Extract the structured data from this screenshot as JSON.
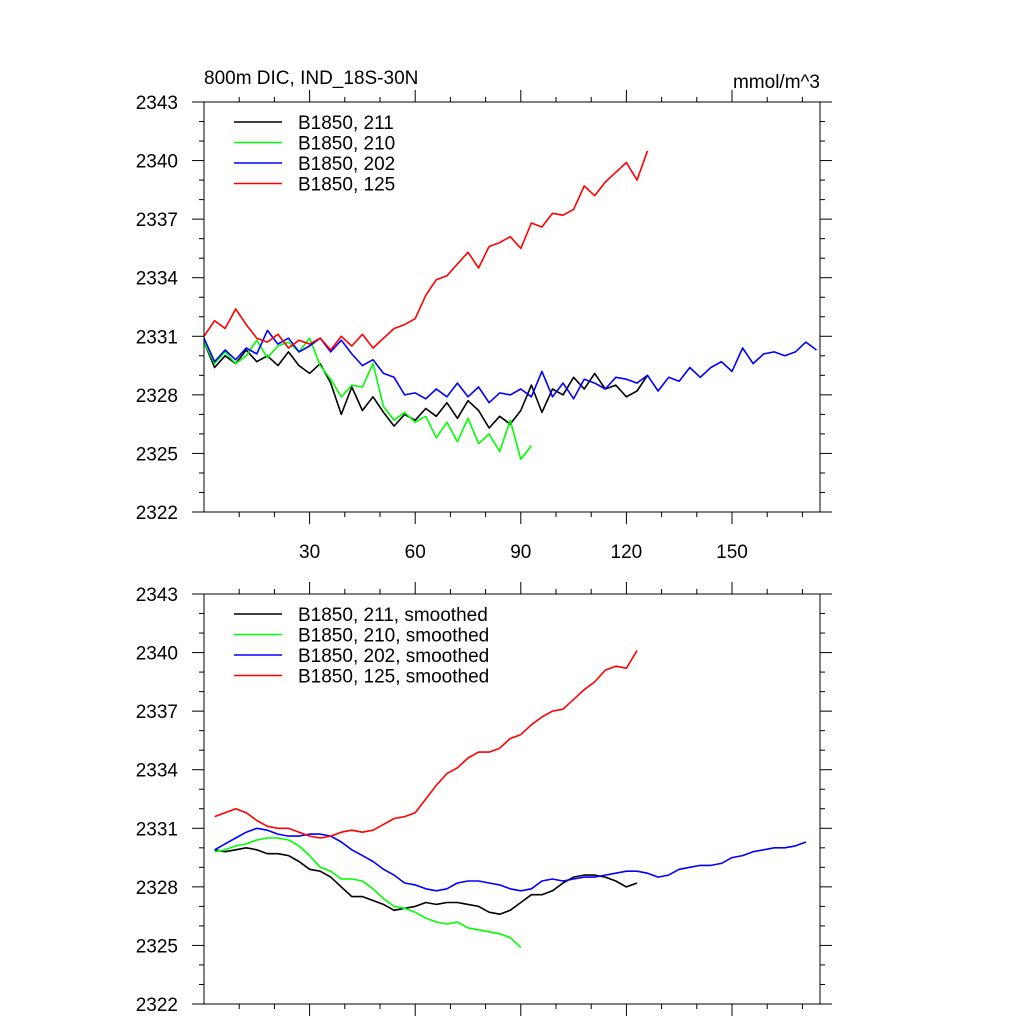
{
  "chart_data": [
    {
      "type": "line",
      "title": "800m DIC, IND_18S-30N",
      "units": "mmol/m^3",
      "xlim": [
        0,
        175
      ],
      "ylim": [
        2322,
        2343
      ],
      "xticks": [
        30,
        60,
        90,
        120,
        150
      ],
      "xtick_labels": [
        "30",
        "60",
        "90",
        "120",
        "150"
      ],
      "yticks": [
        2322,
        2325,
        2328,
        2331,
        2334,
        2337,
        2340,
        2343
      ],
      "ytick_labels": [
        "2322",
        "2325",
        "2328",
        "2331",
        "2334",
        "2337",
        "2340",
        "2343"
      ],
      "legend_position": "top-left",
      "series": [
        {
          "name": "B1850, 211",
          "color": "#000000",
          "x": [
            0,
            3,
            6,
            9,
            12,
            15,
            18,
            21,
            24,
            27,
            30,
            33,
            36,
            39,
            42,
            45,
            48,
            51,
            54,
            57,
            60,
            63,
            66,
            69,
            72,
            75,
            78,
            81,
            84,
            87,
            90,
            93,
            96,
            99,
            102,
            105,
            108,
            111,
            114,
            117,
            120,
            123,
            126
          ],
          "y": [
            2330.7,
            2329.4,
            2330.0,
            2329.6,
            2330.3,
            2329.7,
            2330.0,
            2329.5,
            2330.2,
            2329.5,
            2329.1,
            2329.6,
            2328.6,
            2327.0,
            2328.4,
            2327.2,
            2327.9,
            2327.1,
            2326.4,
            2327.0,
            2326.7,
            2327.3,
            2326.9,
            2327.6,
            2326.8,
            2327.7,
            2327.2,
            2326.3,
            2326.9,
            2326.5,
            2327.2,
            2328.5,
            2327.1,
            2328.3,
            2328.0,
            2328.9,
            2328.3,
            2329.1,
            2328.3,
            2328.5,
            2327.9,
            2328.2,
            2329.0
          ]
        },
        {
          "name": "B1850, 210",
          "color": "#00ff00",
          "x": [
            0,
            3,
            6,
            9,
            12,
            15,
            18,
            21,
            24,
            27,
            30,
            33,
            36,
            39,
            42,
            45,
            48,
            51,
            54,
            57,
            60,
            63,
            66,
            69,
            72,
            75,
            78,
            81,
            84,
            87,
            90,
            93
          ],
          "y": [
            2330.7,
            2329.6,
            2330.2,
            2329.6,
            2330.0,
            2330.8,
            2329.9,
            2330.5,
            2330.7,
            2330.2,
            2330.9,
            2329.5,
            2328.8,
            2327.9,
            2328.5,
            2328.4,
            2329.6,
            2327.4,
            2326.7,
            2327.1,
            2326.6,
            2326.9,
            2325.8,
            2326.6,
            2325.6,
            2326.8,
            2325.5,
            2326.0,
            2325.1,
            2326.7,
            2324.7,
            2325.4
          ]
        },
        {
          "name": "B1850, 202",
          "color": "#0000ff",
          "x": [
            0,
            3,
            6,
            9,
            12,
            15,
            18,
            21,
            24,
            27,
            30,
            33,
            36,
            39,
            42,
            45,
            48,
            51,
            54,
            57,
            60,
            63,
            66,
            69,
            72,
            75,
            78,
            81,
            84,
            87,
            90,
            93,
            96,
            99,
            102,
            105,
            108,
            111,
            114,
            117,
            120,
            123,
            126,
            129,
            132,
            135,
            138,
            141,
            144,
            147,
            150,
            153,
            156,
            159,
            162,
            165,
            168,
            171,
            174
          ],
          "y": [
            2330.9,
            2329.7,
            2330.3,
            2329.8,
            2330.4,
            2330.1,
            2331.3,
            2330.6,
            2330.9,
            2330.2,
            2330.5,
            2330.9,
            2330.2,
            2330.8,
            2330.1,
            2329.5,
            2329.8,
            2329.1,
            2328.9,
            2328.0,
            2328.1,
            2327.8,
            2328.3,
            2327.9,
            2328.6,
            2327.9,
            2328.4,
            2327.6,
            2328.1,
            2328.0,
            2328.3,
            2327.9,
            2329.2,
            2327.9,
            2328.6,
            2327.8,
            2328.8,
            2328.6,
            2328.3,
            2328.9,
            2328.8,
            2328.6,
            2329.0,
            2328.2,
            2328.9,
            2328.7,
            2329.4,
            2328.9,
            2329.4,
            2329.7,
            2329.2,
            2330.4,
            2329.6,
            2330.1,
            2330.2,
            2330.0,
            2330.2,
            2330.7,
            2330.3
          ]
        },
        {
          "name": "B1850, 125",
          "color": "#ff0000",
          "x": [
            0,
            3,
            6,
            9,
            12,
            15,
            18,
            21,
            24,
            27,
            30,
            33,
            36,
            39,
            42,
            45,
            48,
            51,
            54,
            57,
            60,
            63,
            66,
            69,
            72,
            75,
            78,
            81,
            84,
            87,
            90,
            93,
            96,
            99,
            102,
            105,
            108,
            111,
            114,
            117,
            120,
            123,
            126
          ],
          "y": [
            2331.0,
            2331.8,
            2331.4,
            2332.4,
            2331.6,
            2330.9,
            2330.7,
            2331.1,
            2330.4,
            2330.8,
            2330.6,
            2330.9,
            2330.3,
            2331.0,
            2330.5,
            2331.1,
            2330.4,
            2330.9,
            2331.4,
            2331.6,
            2331.9,
            2333.1,
            2333.9,
            2334.1,
            2334.7,
            2335.3,
            2334.5,
            2335.6,
            2335.8,
            2336.1,
            2335.5,
            2336.8,
            2336.6,
            2337.3,
            2337.2,
            2337.5,
            2338.7,
            2338.2,
            2338.9,
            2339.4,
            2339.9,
            2339.0,
            2340.5
          ]
        }
      ]
    },
    {
      "type": "line",
      "title": "",
      "xlim": [
        0,
        175
      ],
      "ylim": [
        2322,
        2343
      ],
      "xticks": [
        30,
        60,
        90,
        120,
        150
      ],
      "yticks": [
        2322,
        2325,
        2328,
        2331,
        2334,
        2337,
        2340,
        2343
      ],
      "ytick_labels": [
        "2322",
        "2325",
        "2328",
        "2331",
        "2334",
        "2337",
        "2340",
        "2343"
      ],
      "legend_position": "top-left",
      "series": [
        {
          "name": "B1850, 211, smoothed",
          "color": "#000000",
          "x": [
            3,
            6,
            9,
            12,
            15,
            18,
            21,
            24,
            27,
            30,
            33,
            36,
            39,
            42,
            45,
            48,
            51,
            54,
            57,
            60,
            63,
            66,
            69,
            72,
            75,
            78,
            81,
            84,
            87,
            90,
            93,
            96,
            99,
            102,
            105,
            108,
            111,
            114,
            117,
            120,
            123
          ],
          "y": [
            2329.9,
            2329.8,
            2329.9,
            2330.0,
            2329.9,
            2329.7,
            2329.7,
            2329.6,
            2329.3,
            2328.9,
            2328.8,
            2328.5,
            2328.0,
            2327.5,
            2327.5,
            2327.3,
            2327.1,
            2326.8,
            2326.9,
            2327.0,
            2327.2,
            2327.1,
            2327.2,
            2327.2,
            2327.1,
            2327.0,
            2326.7,
            2326.6,
            2326.8,
            2327.2,
            2327.6,
            2327.6,
            2327.8,
            2328.2,
            2328.5,
            2328.6,
            2328.6,
            2328.5,
            2328.3,
            2328.0,
            2328.2
          ]
        },
        {
          "name": "B1850, 210, smoothed",
          "color": "#00ff00",
          "x": [
            3,
            6,
            9,
            12,
            15,
            18,
            21,
            24,
            27,
            30,
            33,
            36,
            39,
            42,
            45,
            48,
            51,
            54,
            57,
            60,
            63,
            66,
            69,
            72,
            75,
            78,
            81,
            84,
            87,
            90
          ],
          "y": [
            2329.8,
            2329.9,
            2330.1,
            2330.2,
            2330.4,
            2330.5,
            2330.5,
            2330.4,
            2330.1,
            2329.6,
            2329.0,
            2328.8,
            2328.4,
            2328.4,
            2328.3,
            2327.9,
            2327.4,
            2327.0,
            2326.9,
            2326.7,
            2326.4,
            2326.2,
            2326.1,
            2326.2,
            2325.9,
            2325.8,
            2325.7,
            2325.6,
            2325.4,
            2324.9
          ]
        },
        {
          "name": "B1850, 202, smoothed",
          "color": "#0000ff",
          "x": [
            3,
            6,
            9,
            12,
            15,
            18,
            21,
            24,
            27,
            30,
            33,
            36,
            39,
            42,
            45,
            48,
            51,
            54,
            57,
            60,
            63,
            66,
            69,
            72,
            75,
            78,
            81,
            84,
            87,
            90,
            93,
            96,
            99,
            102,
            105,
            108,
            111,
            114,
            117,
            120,
            123,
            126,
            129,
            132,
            135,
            138,
            141,
            144,
            147,
            150,
            153,
            156,
            159,
            162,
            165,
            168,
            171
          ],
          "y": [
            2329.9,
            2330.2,
            2330.5,
            2330.8,
            2331.0,
            2330.9,
            2330.7,
            2330.6,
            2330.6,
            2330.7,
            2330.7,
            2330.6,
            2330.3,
            2329.9,
            2329.6,
            2329.3,
            2328.9,
            2328.6,
            2328.2,
            2328.1,
            2327.9,
            2327.8,
            2327.9,
            2328.2,
            2328.3,
            2328.3,
            2328.2,
            2328.1,
            2327.9,
            2327.8,
            2327.9,
            2328.3,
            2328.4,
            2328.3,
            2328.4,
            2328.5,
            2328.5,
            2328.6,
            2328.7,
            2328.8,
            2328.8,
            2328.7,
            2328.5,
            2328.6,
            2328.9,
            2329.0,
            2329.1,
            2329.1,
            2329.2,
            2329.5,
            2329.6,
            2329.8,
            2329.9,
            2330.0,
            2330.0,
            2330.1,
            2330.3
          ]
        },
        {
          "name": "B1850, 125, smoothed",
          "color": "#ff0000",
          "x": [
            3,
            6,
            9,
            12,
            15,
            18,
            21,
            24,
            27,
            30,
            33,
            36,
            39,
            42,
            45,
            48,
            51,
            54,
            57,
            60,
            63,
            66,
            69,
            72,
            75,
            78,
            81,
            84,
            87,
            90,
            93,
            96,
            99,
            102,
            105,
            108,
            111,
            114,
            117,
            120,
            123
          ],
          "y": [
            2331.6,
            2331.8,
            2332.0,
            2331.8,
            2331.4,
            2331.1,
            2331.0,
            2331.0,
            2330.8,
            2330.6,
            2330.5,
            2330.6,
            2330.8,
            2330.9,
            2330.8,
            2330.9,
            2331.2,
            2331.5,
            2331.6,
            2331.8,
            2332.5,
            2333.2,
            2333.8,
            2334.1,
            2334.6,
            2334.9,
            2334.9,
            2335.1,
            2335.6,
            2335.8,
            2336.3,
            2336.7,
            2337.0,
            2337.1,
            2337.6,
            2338.1,
            2338.5,
            2339.1,
            2339.3,
            2339.2,
            2340.1
          ]
        }
      ]
    }
  ]
}
